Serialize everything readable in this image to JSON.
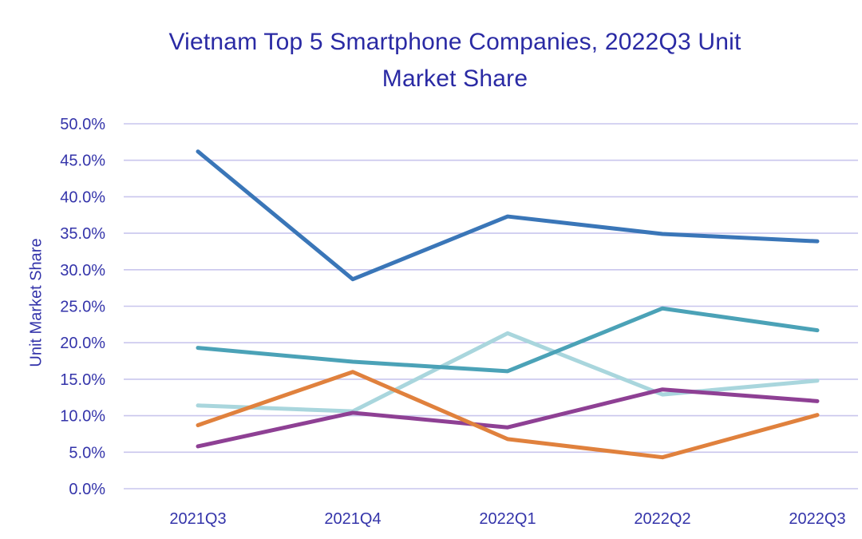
{
  "colors": {
    "title_text": "#2a2aa4",
    "axis_text": "#3434aa",
    "gridline": "#c9c6ed",
    "background": "#ffffff"
  },
  "chart_data": {
    "type": "line",
    "title": "Vietnam Top 5 Smartphone Companies, 2022Q3 Unit Market Share",
    "xlabel": "",
    "ylabel": "Unit Market Share",
    "categories": [
      "2021Q3",
      "2021Q4",
      "2022Q1",
      "2022Q2",
      "2022Q3"
    ],
    "series": [
      {
        "name": "dark-blue",
        "color": "#3a76b8",
        "values": [
          46.2,
          28.7,
          37.3,
          34.9,
          33.9
        ]
      },
      {
        "name": "teal",
        "color": "#4ba2b7",
        "values": [
          19.3,
          17.4,
          16.1,
          24.7,
          21.7
        ]
      },
      {
        "name": "light-blue",
        "color": "#a9d6dd",
        "values": [
          11.4,
          10.6,
          21.3,
          12.9,
          14.8
        ]
      },
      {
        "name": "orange",
        "color": "#e0813d",
        "values": [
          8.7,
          16.0,
          6.8,
          4.3,
          10.1
        ]
      },
      {
        "name": "purple",
        "color": "#8e4094",
        "values": [
          5.8,
          10.4,
          8.4,
          13.6,
          12.0
        ]
      }
    ],
    "y_ticks": [
      "0.0%",
      "5.0%",
      "10.0%",
      "15.0%",
      "20.0%",
      "25.0%",
      "30.0%",
      "35.0%",
      "40.0%",
      "45.0%",
      "50.0%"
    ],
    "y_tick_step": 5,
    "ylim": [
      0,
      50
    ],
    "grid": true,
    "legend": false
  }
}
